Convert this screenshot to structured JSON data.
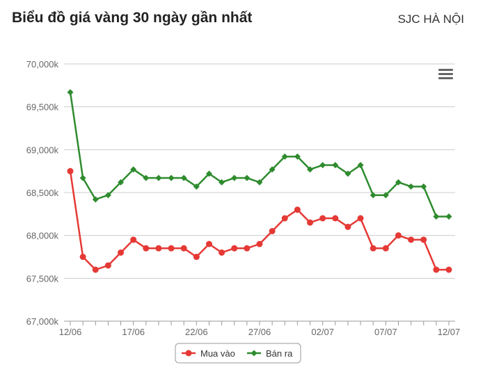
{
  "header": {
    "title": "Biểu đồ giá vàng 30 ngày gần nhất",
    "location": "SJC HÀ NỘI"
  },
  "icons": {
    "menu": "hamburger-menu-icon"
  },
  "colors": {
    "buy": "#e53935",
    "sell": "#2e8b2e",
    "grid": "#cccccc",
    "axis_text": "#666666"
  },
  "chart_data": {
    "type": "line",
    "title": "",
    "xlabel": "",
    "ylabel": "",
    "ylim": [
      67000,
      70000
    ],
    "y_ticks": [
      67000,
      67500,
      68000,
      68500,
      69000,
      69500,
      70000
    ],
    "y_tick_labels": [
      "67,000k",
      "67,500k",
      "68,000k",
      "68,500k",
      "69,000k",
      "69,500k",
      "70,000k"
    ],
    "x_tick_labels": [
      {
        "index": 0,
        "label": "12/06"
      },
      {
        "index": 5,
        "label": "17/06"
      },
      {
        "index": 10,
        "label": "22/06"
      },
      {
        "index": 15,
        "label": "27/06"
      },
      {
        "index": 20,
        "label": "02/07"
      },
      {
        "index": 25,
        "label": "07/07"
      },
      {
        "index": 30,
        "label": "12/07"
      }
    ],
    "point_count": 31,
    "grid": true,
    "legend": "bottom-center",
    "series": [
      {
        "name": "Mua vào",
        "color": "#e53935",
        "marker": "circle",
        "values": [
          68750,
          67750,
          67600,
          67650,
          67800,
          67950,
          67850,
          67850,
          67850,
          67850,
          67750,
          67900,
          67800,
          67850,
          67850,
          67900,
          68050,
          68200,
          68300,
          68150,
          68200,
          68200,
          68100,
          68200,
          67850,
          67850,
          68000,
          67950,
          67950,
          67600,
          67600
        ]
      },
      {
        "name": "Bán ra",
        "color": "#2e8b2e",
        "marker": "diamond",
        "values": [
          69670,
          68670,
          68420,
          68470,
          68620,
          68770,
          68670,
          68670,
          68670,
          68670,
          68570,
          68720,
          68620,
          68670,
          68670,
          68620,
          68770,
          68920,
          68920,
          68770,
          68820,
          68820,
          68720,
          68820,
          68470,
          68470,
          68620,
          68570,
          68570,
          68220,
          68220
        ]
      }
    ]
  }
}
